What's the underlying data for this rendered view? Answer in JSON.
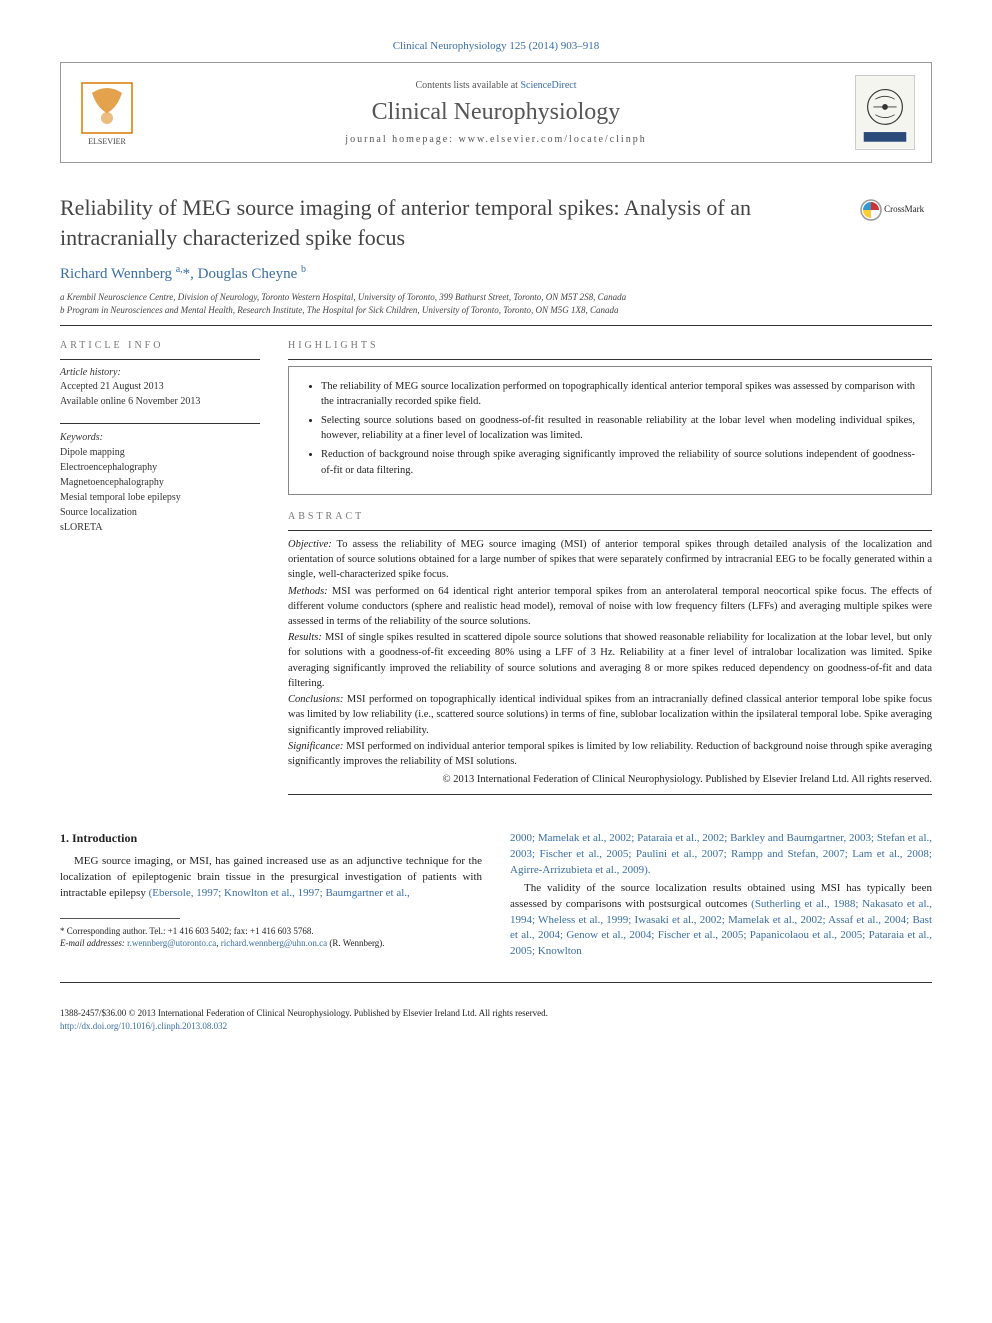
{
  "journal_ref": "Clinical Neurophysiology 125 (2014) 903–918",
  "header": {
    "contents_prefix": "Contents lists available at ",
    "contents_link": "ScienceDirect",
    "journal_name": "Clinical Neurophysiology",
    "homepage_prefix": "journal homepage: ",
    "homepage_url": "www.elsevier.com/locate/clinph"
  },
  "title": "Reliability of MEG source imaging of anterior temporal spikes: Analysis of an intracranially characterized spike focus",
  "crossmark_label": "CrossMark",
  "authors_html": "Richard Wennberg <sup>a,</sup>*, Douglas Cheyne <sup>b</sup>",
  "affiliations": [
    "a Krembil Neuroscience Centre, Division of Neurology, Toronto Western Hospital, University of Toronto, 399 Bathurst Street, Toronto, ON M5T 2S8, Canada",
    "b Program in Neurosciences and Mental Health, Research Institute, The Hospital for Sick Children, University of Toronto, Toronto, ON M5G 1X8, Canada"
  ],
  "article_info_label": "ARTICLE INFO",
  "history": {
    "label": "Article history:",
    "accepted": "Accepted 21 August 2013",
    "online": "Available online 6 November 2013"
  },
  "keywords": {
    "label": "Keywords:",
    "items": [
      "Dipole mapping",
      "Electroencephalography",
      "Magnetoencephalography",
      "Mesial temporal lobe epilepsy",
      "Source localization",
      "sLORETA"
    ]
  },
  "highlights_label": "HIGHLIGHTS",
  "highlights": [
    "The reliability of MEG source localization performed on topographically identical anterior temporal spikes was assessed by comparison with the intracranially recorded spike field.",
    "Selecting source solutions based on goodness-of-fit resulted in reasonable reliability at the lobar level when modeling individual spikes, however, reliability at a finer level of localization was limited.",
    "Reduction of background noise through spike averaging significantly improved the reliability of source solutions independent of goodness-of-fit or data filtering."
  ],
  "abstract_label": "ABSTRACT",
  "abstract": {
    "objective": "Objective: To assess the reliability of MEG source imaging (MSI) of anterior temporal spikes through detailed analysis of the localization and orientation of source solutions obtained for a large number of spikes that were separately confirmed by intracranial EEG to be focally generated within a single, well-characterized spike focus.",
    "methods": "Methods: MSI was performed on 64 identical right anterior temporal spikes from an anterolateral temporal neocortical spike focus. The effects of different volume conductors (sphere and realistic head model), removal of noise with low frequency filters (LFFs) and averaging multiple spikes were assessed in terms of the reliability of the source solutions.",
    "results": "Results: MSI of single spikes resulted in scattered dipole source solutions that showed reasonable reliability for localization at the lobar level, but only for solutions with a goodness-of-fit exceeding 80% using a LFF of 3 Hz. Reliability at a finer level of intralobar localization was limited. Spike averaging significantly improved the reliability of source solutions and averaging 8 or more spikes reduced dependency on goodness-of-fit and data filtering.",
    "conclusions": "Conclusions: MSI performed on topographically identical individual spikes from an intracranially defined classical anterior temporal lobe spike focus was limited by low reliability (i.e., scattered source solutions) in terms of fine, sublobar localization within the ipsilateral temporal lobe. Spike averaging significantly improved reliability.",
    "significance": "Significance: MSI performed on individual anterior temporal spikes is limited by low reliability. Reduction of background noise through spike averaging significantly improves the reliability of MSI solutions."
  },
  "copyright": "© 2013 International Federation of Clinical Neurophysiology. Published by Elsevier Ireland Ltd. All rights reserved.",
  "intro_heading": "1. Introduction",
  "intro_p1_text": "MEG source imaging, or MSI, has gained increased use as an adjunctive technique for the localization of epileptogenic brain tissue in the presurgical investigation of patients with intractable epilepsy ",
  "intro_p1_refs": "(Ebersole, 1997; Knowlton et al., 1997; Baumgartner et al.,",
  "intro_right_refs": "2000; Mamelak et al., 2002; Pataraia et al., 2002; Barkley and Baumgartner, 2003; Stefan et al., 2003; Fischer et al., 2005; Paulini et al., 2007; Rampp and Stefan, 2007; Lam et al., 2008; Agirre-Arrizubieta et al., 2009).",
  "intro_p2_text": "The validity of the source localization results obtained using MSI has typically been assessed by comparisons with postsurgical outcomes ",
  "intro_p2_refs": "(Sutherling et al., 1988; Nakasato et al., 1994; Wheless et al., 1999; Iwasaki et al., 2002; Mamelak et al., 2002; Assaf et al., 2004; Bast et al., 2004; Genow et al., 2004; Fischer et al., 2005; Papanicolaou et al., 2005; Pataraia et al., 2005; Knowlton",
  "footnote": {
    "corr": "* Corresponding author. Tel.: +1 416 603 5402; fax: +1 416 603 5768.",
    "email_label": "E-mail addresses: ",
    "email1": "r.wennberg@utoronto.ca",
    "email2": "richard.wennberg@uhn.on.ca",
    "email_tail": " (R. Wennberg)."
  },
  "footer": {
    "issn": "1388-2457/$36.00 © 2013 International Federation of Clinical Neurophysiology. Published by Elsevier Ireland Ltd. All rights reserved.",
    "doi": "http://dx.doi.org/10.1016/j.clinph.2013.08.032"
  },
  "colors": {
    "link": "#3a6ea5",
    "text": "#222222",
    "muted": "#777777"
  }
}
